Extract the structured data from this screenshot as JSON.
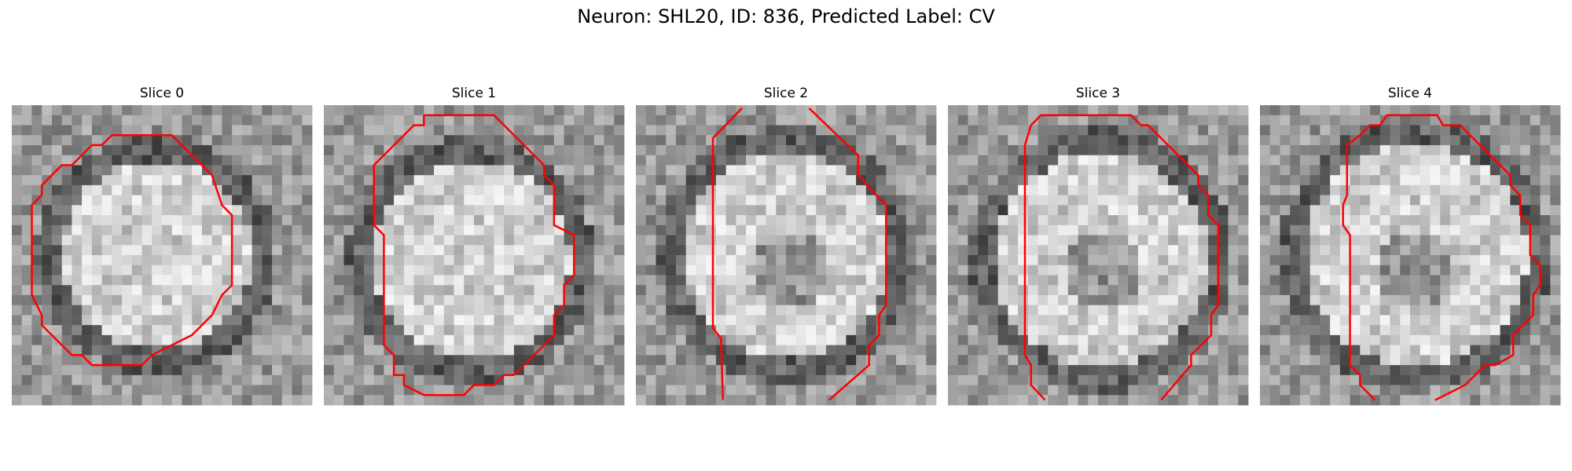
{
  "title": "Neuron: SHL20, ID: 836, Predicted Label: CV",
  "panels": [
    {
      "title": "Slice 0"
    },
    {
      "title": "Slice 1"
    },
    {
      "title": "Slice 2"
    },
    {
      "title": "Slice 3"
    },
    {
      "title": "Slice 4"
    }
  ]
}
